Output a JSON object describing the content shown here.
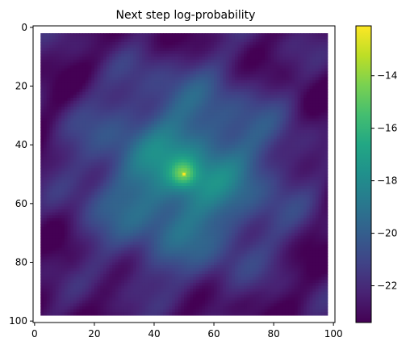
{
  "chart_data": {
    "type": "heatmap",
    "title": "Next step log-probability",
    "xlabel": "",
    "ylabel": "",
    "xlim": [
      -0.5,
      100.5
    ],
    "ylim": [
      100.5,
      -0.5
    ],
    "x_ticks": [
      0,
      20,
      40,
      60,
      80,
      100
    ],
    "y_ticks": [
      0,
      20,
      40,
      60,
      80,
      100
    ],
    "x_tick_labels": [
      "0",
      "20",
      "40",
      "60",
      "80",
      "100"
    ],
    "y_tick_labels": [
      "0",
      "20",
      "40",
      "60",
      "80",
      "100"
    ],
    "data_extent": {
      "cols": [
        2,
        98
      ],
      "rows": [
        2,
        98
      ]
    },
    "grid_resolution": 96,
    "peak": {
      "x": 50,
      "y": 50,
      "value": -12.2
    },
    "field": {
      "center_value": -16.6,
      "edge_value": -22.8
    },
    "colormap": "viridis",
    "colorbar": {
      "vmin": -23.4,
      "vmax": -12.1,
      "ticks": [
        -14,
        -16,
        -18,
        -20,
        -22
      ],
      "tick_labels": [
        "−14",
        "−16",
        "−18",
        "−20",
        "−22"
      ]
    },
    "grid": false,
    "legend": "none"
  }
}
